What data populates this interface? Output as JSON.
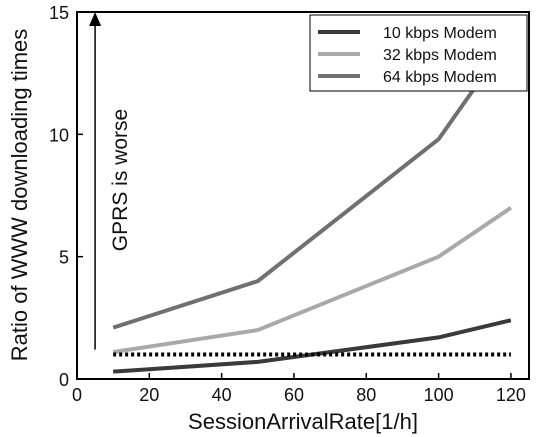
{
  "chart_data": {
    "type": "line",
    "title": "",
    "xlabel": "SessionArrivalRate[1/h]",
    "ylabel": "Ratio of WWW downloading times",
    "xlim": [
      0,
      125
    ],
    "ylim": [
      0,
      15
    ],
    "xticks": [
      0,
      20,
      40,
      60,
      80,
      100,
      120
    ],
    "yticks": [
      0,
      5,
      10,
      15
    ],
    "x": [
      10,
      50,
      100,
      120
    ],
    "series": [
      {
        "name": "10 kbps Modem",
        "color": "#3a3a3a",
        "values": [
          0.3,
          0.7,
          1.7,
          2.4
        ]
      },
      {
        "name": "32 kbps Modem",
        "color": "#a9a9a9",
        "values": [
          1.1,
          2.0,
          5.0,
          7.0
        ]
      },
      {
        "name": "64 kbps Modem",
        "color": "#707070",
        "values": [
          2.1,
          4.0,
          9.8,
          14.0
        ]
      }
    ],
    "reference_line": {
      "y": 1.0,
      "x_range": [
        10,
        120
      ],
      "style": "dotted"
    },
    "annotation": {
      "text": "GPRS is worse",
      "arrow": "up",
      "x": 5,
      "y_from": 1.2,
      "y_to": 15
    },
    "legend_position": "top-right",
    "grid": false
  }
}
